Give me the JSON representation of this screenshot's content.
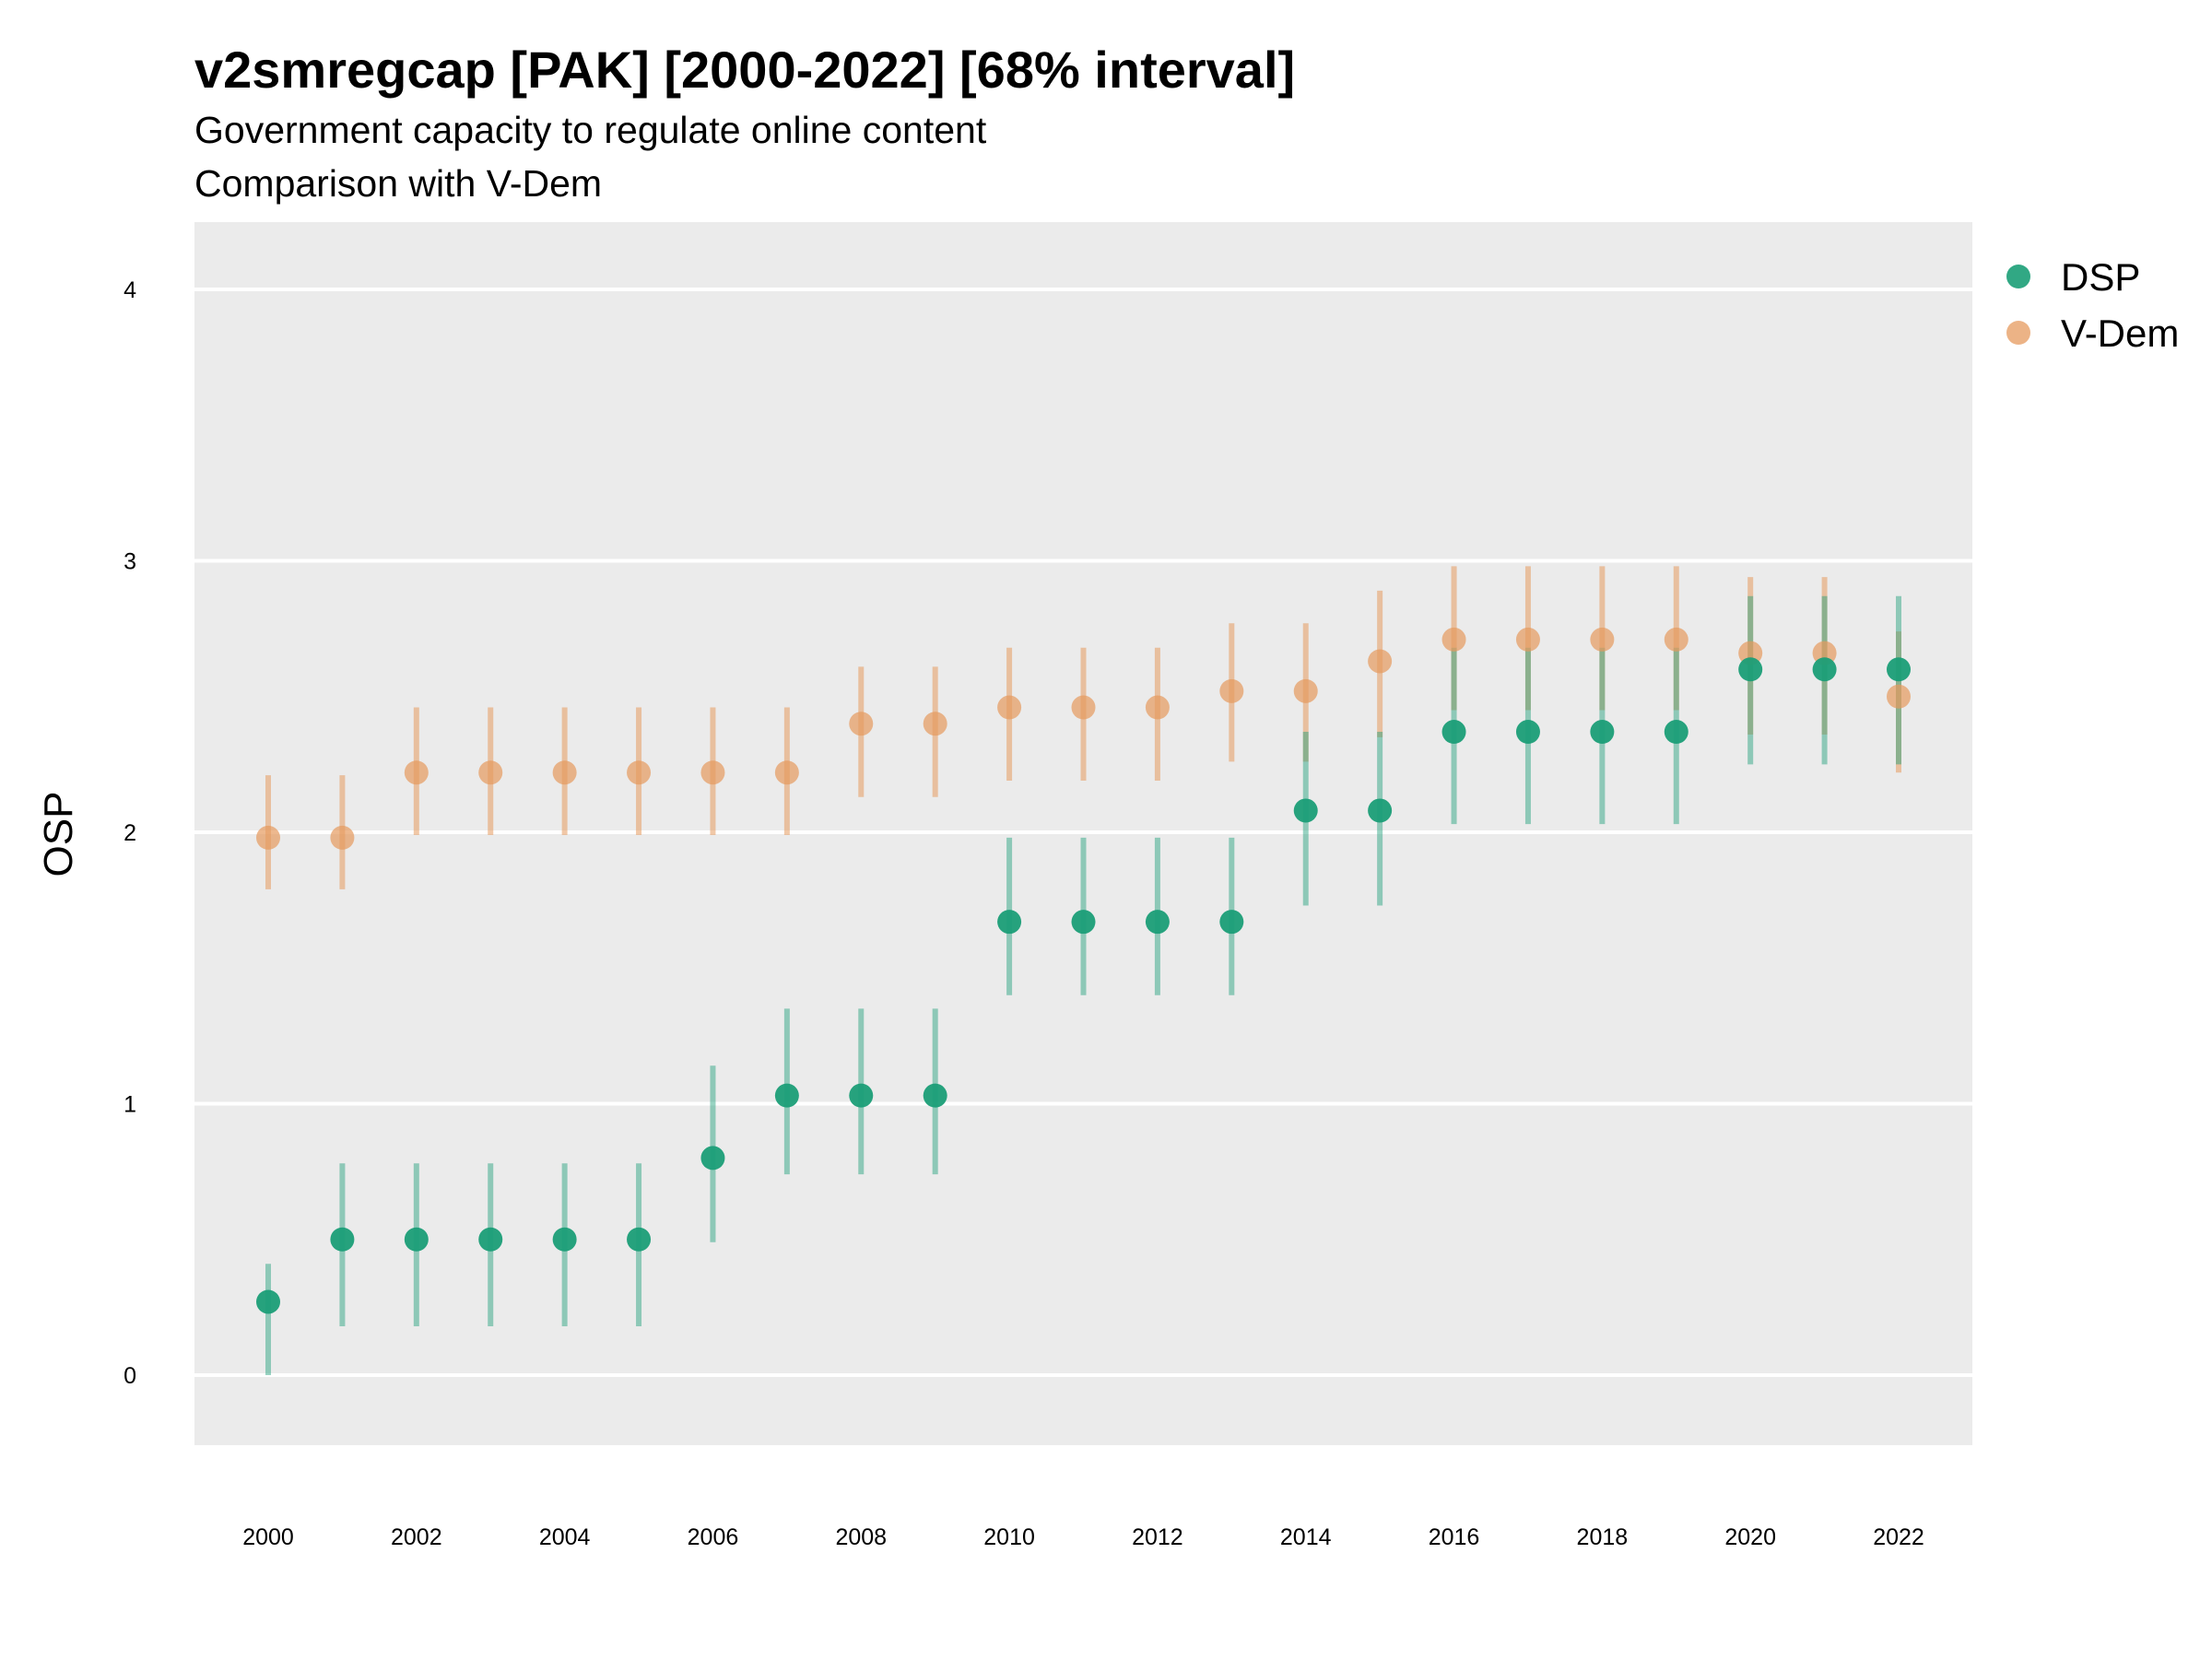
{
  "chart_data": {
    "type": "scatter",
    "title": "v2smregcap [PAK] [2000-2022] [68% interval]",
    "subtitle": "Government capacity to regulate online content",
    "subtitle2": "Comparison with V-Dem",
    "xlabel": "",
    "ylabel": "OSP",
    "xlim": [
      1999,
      2023
    ],
    "ylim": [
      -0.25,
      4.25
    ],
    "x_ticks": [
      "2000",
      "2002",
      "2004",
      "2006",
      "2008",
      "2010",
      "2012",
      "2014",
      "2016",
      "2018",
      "2020",
      "2022"
    ],
    "y_ticks": [
      "0",
      "1",
      "2",
      "3",
      "4"
    ],
    "grid": true,
    "legend_position": "right",
    "x": [
      2000,
      2001,
      2002,
      2003,
      2004,
      2005,
      2006,
      2007,
      2008,
      2009,
      2010,
      2011,
      2012,
      2013,
      2014,
      2015,
      2016,
      2017,
      2018,
      2019,
      2020,
      2021,
      2022
    ],
    "series": [
      {
        "name": "DSP",
        "color": "#1b9e77",
        "values": [
          0.27,
          0.5,
          0.5,
          0.5,
          0.5,
          0.5,
          0.8,
          1.03,
          1.03,
          1.03,
          1.67,
          1.67,
          1.67,
          1.67,
          2.08,
          2.08,
          2.37,
          2.37,
          2.37,
          2.37,
          2.6,
          2.6,
          2.6
        ],
        "lower": [
          0.0,
          0.18,
          0.18,
          0.18,
          0.18,
          0.18,
          0.49,
          0.74,
          0.74,
          0.74,
          1.4,
          1.4,
          1.4,
          1.4,
          1.73,
          1.73,
          2.03,
          2.03,
          2.03,
          2.03,
          2.25,
          2.25,
          2.25
        ],
        "upper": [
          0.41,
          0.78,
          0.78,
          0.78,
          0.78,
          0.78,
          1.14,
          1.35,
          1.35,
          1.35,
          1.98,
          1.98,
          1.98,
          1.98,
          2.37,
          2.37,
          2.68,
          2.68,
          2.68,
          2.68,
          2.87,
          2.87,
          2.87
        ]
      },
      {
        "name": "V-Dem",
        "color": "#e59a5e",
        "values": [
          1.98,
          1.98,
          2.22,
          2.22,
          2.22,
          2.22,
          2.22,
          2.22,
          2.4,
          2.4,
          2.46,
          2.46,
          2.46,
          2.52,
          2.52,
          2.63,
          2.71,
          2.71,
          2.71,
          2.71,
          2.66,
          2.66,
          2.5
        ],
        "lower": [
          1.79,
          1.79,
          1.99,
          1.99,
          1.99,
          1.99,
          1.99,
          1.99,
          2.13,
          2.13,
          2.19,
          2.19,
          2.19,
          2.26,
          2.26,
          2.35,
          2.45,
          2.45,
          2.45,
          2.45,
          2.36,
          2.36,
          2.22
        ],
        "upper": [
          2.21,
          2.21,
          2.46,
          2.46,
          2.46,
          2.46,
          2.46,
          2.46,
          2.61,
          2.61,
          2.68,
          2.68,
          2.68,
          2.77,
          2.77,
          2.89,
          2.98,
          2.98,
          2.98,
          2.98,
          2.94,
          2.94,
          2.74
        ]
      }
    ]
  }
}
